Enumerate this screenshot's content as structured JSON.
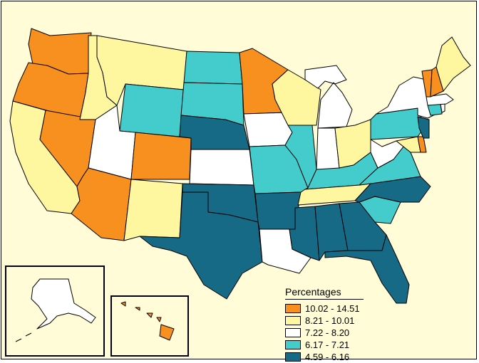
{
  "colors": {
    "background": "#fffcd7",
    "class1": "#f7901e",
    "class2": "#fff7a0",
    "class3": "#ffffff",
    "class4": "#44cccc",
    "class5": "#176a86"
  },
  "legend": {
    "title": "Percentages",
    "entries": [
      {
        "label": "10.02 - 14.51",
        "color": "#f7901e"
      },
      {
        "label": "8.21 - 10.01",
        "color": "#fff7a0"
      },
      {
        "label": "7.22 - 8.20",
        "color": "#ffffff"
      },
      {
        "label": "6.17 - 7.21",
        "color": "#44cccc"
      },
      {
        "label": "4.59 - 6.16",
        "color": "#176a86"
      }
    ]
  },
  "states": {
    "WA": 1,
    "OR": 1,
    "NV": 1,
    "AZ": 1,
    "CO": 1,
    "MN": 1,
    "VT": 1,
    "NH": 1,
    "DE": 1,
    "HI": 1,
    "CA": 2,
    "ID": 2,
    "MT": 2,
    "NM": 2,
    "WI": 2,
    "OH": 2,
    "TN": 2,
    "ME": 2,
    "MD": 2,
    "UT": 3,
    "KS": 3,
    "IA": 3,
    "MI": 3,
    "IN": 3,
    "WV": 3,
    "NY": 3,
    "LA": 3,
    "AK": 3,
    "MA": 3,
    "RI": 3,
    "WY": 4,
    "ND": 4,
    "SD": 4,
    "IL": 4,
    "MO": 4,
    "KY": 4,
    "VA": 4,
    "PA": 4,
    "SC": 4,
    "CT": 4,
    "NE": 5,
    "OK": 5,
    "TX": 5,
    "AR": 5,
    "MS": 5,
    "AL": 5,
    "GA": 5,
    "FL": 5,
    "NC": 5,
    "NJ": 5
  }
}
